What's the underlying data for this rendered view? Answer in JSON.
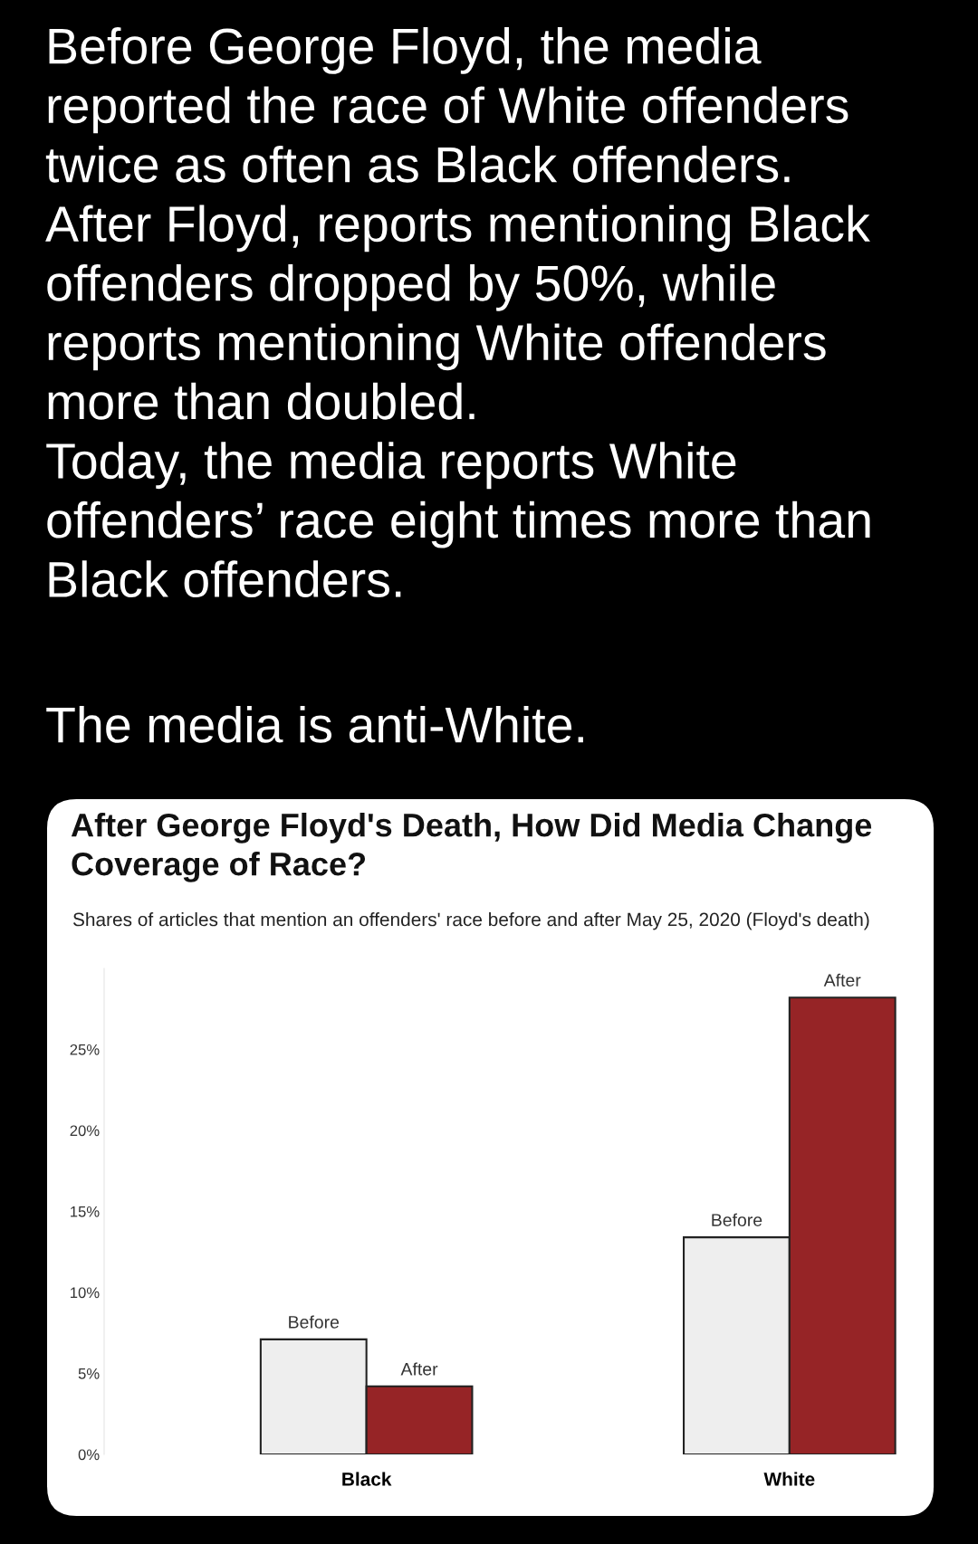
{
  "chart_data": {
    "type": "bar",
    "title": "After George Floyd's Death, How Did Media Change\nCoverage of Race?",
    "subtitle": "Shares of articles that mention an offenders' race before and after May 25, 2020 (Floyd's death)",
    "annotations": [
      "Before George Floyd, the media\nreported the race of White offenders\ntwice as often as Black offenders.\nAfter Floyd, reports mentioning Black\noffenders dropped by 50%, while\nreports mentioning White offenders\nmore than doubled.\nToday, the media reports White\noffenders’ race eight times more than\nBlack offenders.",
      "The media is anti-White."
    ],
    "categories": [
      "Black",
      "White"
    ],
    "series": [
      {
        "name": "Before",
        "color": "#eeeeee",
        "values": [
          7.1,
          13.4
        ]
      },
      {
        "name": "After",
        "color": "#962426",
        "values": [
          4.2,
          28.2
        ]
      }
    ],
    "ylim": [
      0,
      30
    ],
    "yticks": [
      {
        "value": 0,
        "label": "0%"
      },
      {
        "value": 5,
        "label": "5%"
      },
      {
        "value": 10,
        "label": "10%"
      },
      {
        "value": 15,
        "label": "15%"
      },
      {
        "value": 20,
        "label": "20%"
      },
      {
        "value": 25,
        "label": "25%"
      }
    ],
    "grid": false,
    "legend": false
  }
}
